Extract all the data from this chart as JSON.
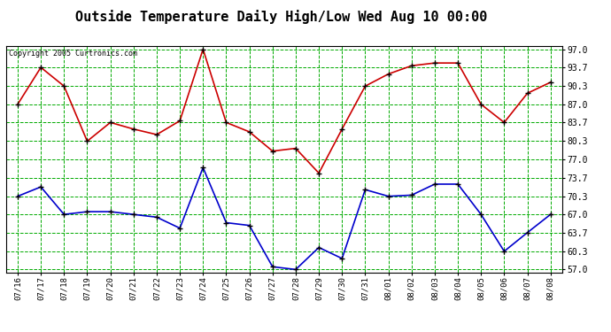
{
  "title": "Outside Temperature Daily High/Low Wed Aug 10 00:00",
  "copyright_text": "Copyright 2005 Curtronics.com",
  "x_labels": [
    "07/16",
    "07/17",
    "07/18",
    "07/19",
    "07/20",
    "07/21",
    "07/22",
    "07/23",
    "07/24",
    "07/25",
    "07/26",
    "07/27",
    "07/28",
    "07/29",
    "07/30",
    "07/31",
    "08/01",
    "08/02",
    "08/03",
    "08/04",
    "08/05",
    "08/06",
    "08/07",
    "08/08"
  ],
  "high_temps": [
    87.0,
    93.7,
    90.3,
    80.3,
    83.7,
    82.5,
    81.5,
    84.0,
    97.0,
    83.7,
    82.0,
    78.5,
    79.0,
    74.5,
    82.5,
    90.3,
    92.5,
    94.0,
    94.5,
    94.5,
    87.0,
    83.7,
    89.0,
    91.0
  ],
  "low_temps": [
    70.3,
    72.0,
    67.0,
    67.5,
    67.5,
    67.0,
    66.5,
    64.5,
    75.5,
    65.5,
    65.0,
    57.5,
    57.0,
    61.0,
    59.0,
    71.5,
    70.3,
    70.5,
    72.5,
    72.5,
    67.0,
    60.3,
    63.7,
    67.0
  ],
  "high_color": "#cc0000",
  "low_color": "#0000cc",
  "bg_color": "#ffffff",
  "plot_bg_color": "#ffffff",
  "grid_color": "#00aa00",
  "y_ticks": [
    57.0,
    60.3,
    63.7,
    67.0,
    70.3,
    73.7,
    77.0,
    80.3,
    83.7,
    87.0,
    90.3,
    93.7,
    97.0
  ],
  "ylim": [
    56.5,
    97.5
  ],
  "title_fontsize": 11,
  "marker": "+",
  "marker_color": "#000000",
  "marker_size": 5,
  "linewidth": 1.2
}
